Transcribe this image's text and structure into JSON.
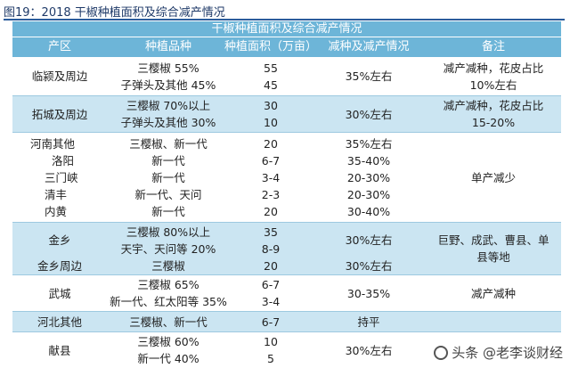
{
  "figure": {
    "title": "图19：2018 干椒种植面积及综合减产情况"
  },
  "table": {
    "title": "干椒种植面积及综合减产情况",
    "headers": [
      "产区",
      "种植品种",
      "种植面积（万亩）",
      "减种及减产情况",
      "备注"
    ],
    "groups": [
      {
        "regions": [
          "临颍及周边"
        ],
        "varieties": [
          "三樱椒 55%",
          "子弹头及其他 45%"
        ],
        "areas": [
          "55",
          "45"
        ],
        "reduction": [
          "35%左右"
        ],
        "note": [
          "减产减种，花皮占比",
          "10%左右"
        ]
      },
      {
        "regions": [
          "拓城及周边"
        ],
        "varieties": [
          "三樱椒 70%以上",
          "子弹头及其他 30%"
        ],
        "areas": [
          "30",
          "10"
        ],
        "reduction": [
          "30%左右"
        ],
        "note": [
          "减产减种，花皮占比",
          "15-20%"
        ]
      },
      {
        "rows": [
          {
            "region": "河南其他",
            "variety": "三樱椒、新一代",
            "area": "20",
            "reduction": "35%左右"
          },
          {
            "region": "洛阳",
            "variety": "新一代",
            "area": "6-7",
            "reduction": "35-40%"
          },
          {
            "region": "三门峡",
            "variety": "新一代",
            "area": "3-4",
            "reduction": "20-30%"
          },
          {
            "region": "清丰",
            "variety": "新一代、天问",
            "area": "2-3",
            "reduction": "20-30%"
          },
          {
            "region": "内黄",
            "variety": "新一代",
            "area": "20",
            "reduction": "30-40%"
          }
        ],
        "note": [
          "单产减少"
        ]
      },
      {
        "regions": [
          "金乡"
        ],
        "varieties": [
          "三樱椒 80%以上",
          "天宇、天问等 20%"
        ],
        "areas": [
          "35",
          "8-9"
        ],
        "reduction": [
          "30%左右"
        ],
        "note": [
          "巨野、成武、曹县、单",
          "县等地"
        ]
      },
      {
        "regions": [
          "金乡周边"
        ],
        "varieties": [
          "三樱椒"
        ],
        "areas": [
          "20"
        ],
        "reduction": [
          "30%左右"
        ],
        "note": []
      },
      {
        "regions": [
          "武城"
        ],
        "varieties": [
          "三樱椒 65%",
          "新一代、红太阳等 35%"
        ],
        "areas": [
          "6-7",
          "3-4"
        ],
        "reduction": [
          "30-35%"
        ],
        "note": [
          "减产减种"
        ]
      },
      {
        "regions": [
          "河北其他"
        ],
        "varieties": [
          "三樱椒、新一代"
        ],
        "areas": [
          "6-7"
        ],
        "reduction": [
          "持平"
        ],
        "note": []
      },
      {
        "regions": [
          "献县"
        ],
        "varieties": [
          "三樱椒 60%",
          "新一代 40%"
        ],
        "areas": [
          "10",
          "5"
        ],
        "reduction": [
          "30%左右"
        ],
        "note": []
      }
    ]
  },
  "watermark": {
    "text": "头条 @老李谈财经",
    "icon": "wechat-logo-icon"
  }
}
